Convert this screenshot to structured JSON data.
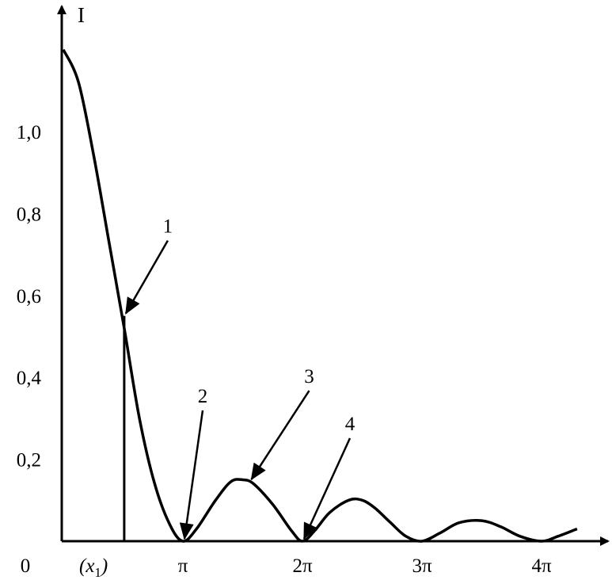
{
  "chart_data": {
    "type": "line",
    "xlabel": "",
    "ylabel": "I",
    "origin_label": "0",
    "y_ticks": [
      {
        "value": 0.2,
        "label": "0,2"
      },
      {
        "value": 0.4,
        "label": "0,4"
      },
      {
        "value": 0.6,
        "label": "0,6"
      },
      {
        "value": 0.8,
        "label": "0,8"
      },
      {
        "value": 1.0,
        "label": "1,0"
      }
    ],
    "x_ticks": [
      {
        "value": 0.5,
        "label": "(x1)",
        "main": "(x",
        "sub": "1",
        "close": ")"
      },
      {
        "value": 3.1416,
        "label": "π"
      },
      {
        "value": 6.2832,
        "label": "2π"
      },
      {
        "value": 9.4248,
        "label": "3π"
      },
      {
        "value": 12.5664,
        "label": "4π"
      }
    ],
    "xlim": [
      -0.1,
      14.7
    ],
    "ylim": [
      0,
      1.25
    ],
    "marker_x1": {
      "x": 1.6,
      "y": 0.55
    },
    "series": [
      {
        "x": [
          0,
          0.4,
          0.8,
          1.2,
          1.6,
          2.0,
          2.4,
          2.8,
          3.1416,
          3.5,
          4.0,
          4.4,
          4.7124,
          5.0,
          5.5,
          6.0,
          6.2832,
          6.6,
          7.0,
          7.5,
          7.854,
          8.2,
          8.6,
          9.0,
          9.4248,
          9.9,
          10.4,
          10.9956,
          11.5,
          12.0,
          12.5664,
          13.0,
          13.5
        ],
        "y": [
          1.2,
          1.12,
          0.94,
          0.73,
          0.52,
          0.3,
          0.14,
          0.04,
          0.0,
          0.03,
          0.1,
          0.145,
          0.15,
          0.14,
          0.09,
          0.025,
          0.0,
          0.025,
          0.07,
          0.1,
          0.1,
          0.08,
          0.045,
          0.012,
          0.0,
          0.02,
          0.045,
          0.05,
          0.035,
          0.012,
          0.0,
          0.012,
          0.03
        ]
      }
    ],
    "annotations": [
      {
        "text": "1",
        "target": [
          1.6,
          0.55
        ]
      },
      {
        "text": "2",
        "target": [
          3.1416,
          0.0
        ]
      },
      {
        "text": "3",
        "target": [
          4.9,
          0.145
        ]
      },
      {
        "text": "4",
        "target": [
          6.2832,
          0.0
        ]
      }
    ]
  }
}
